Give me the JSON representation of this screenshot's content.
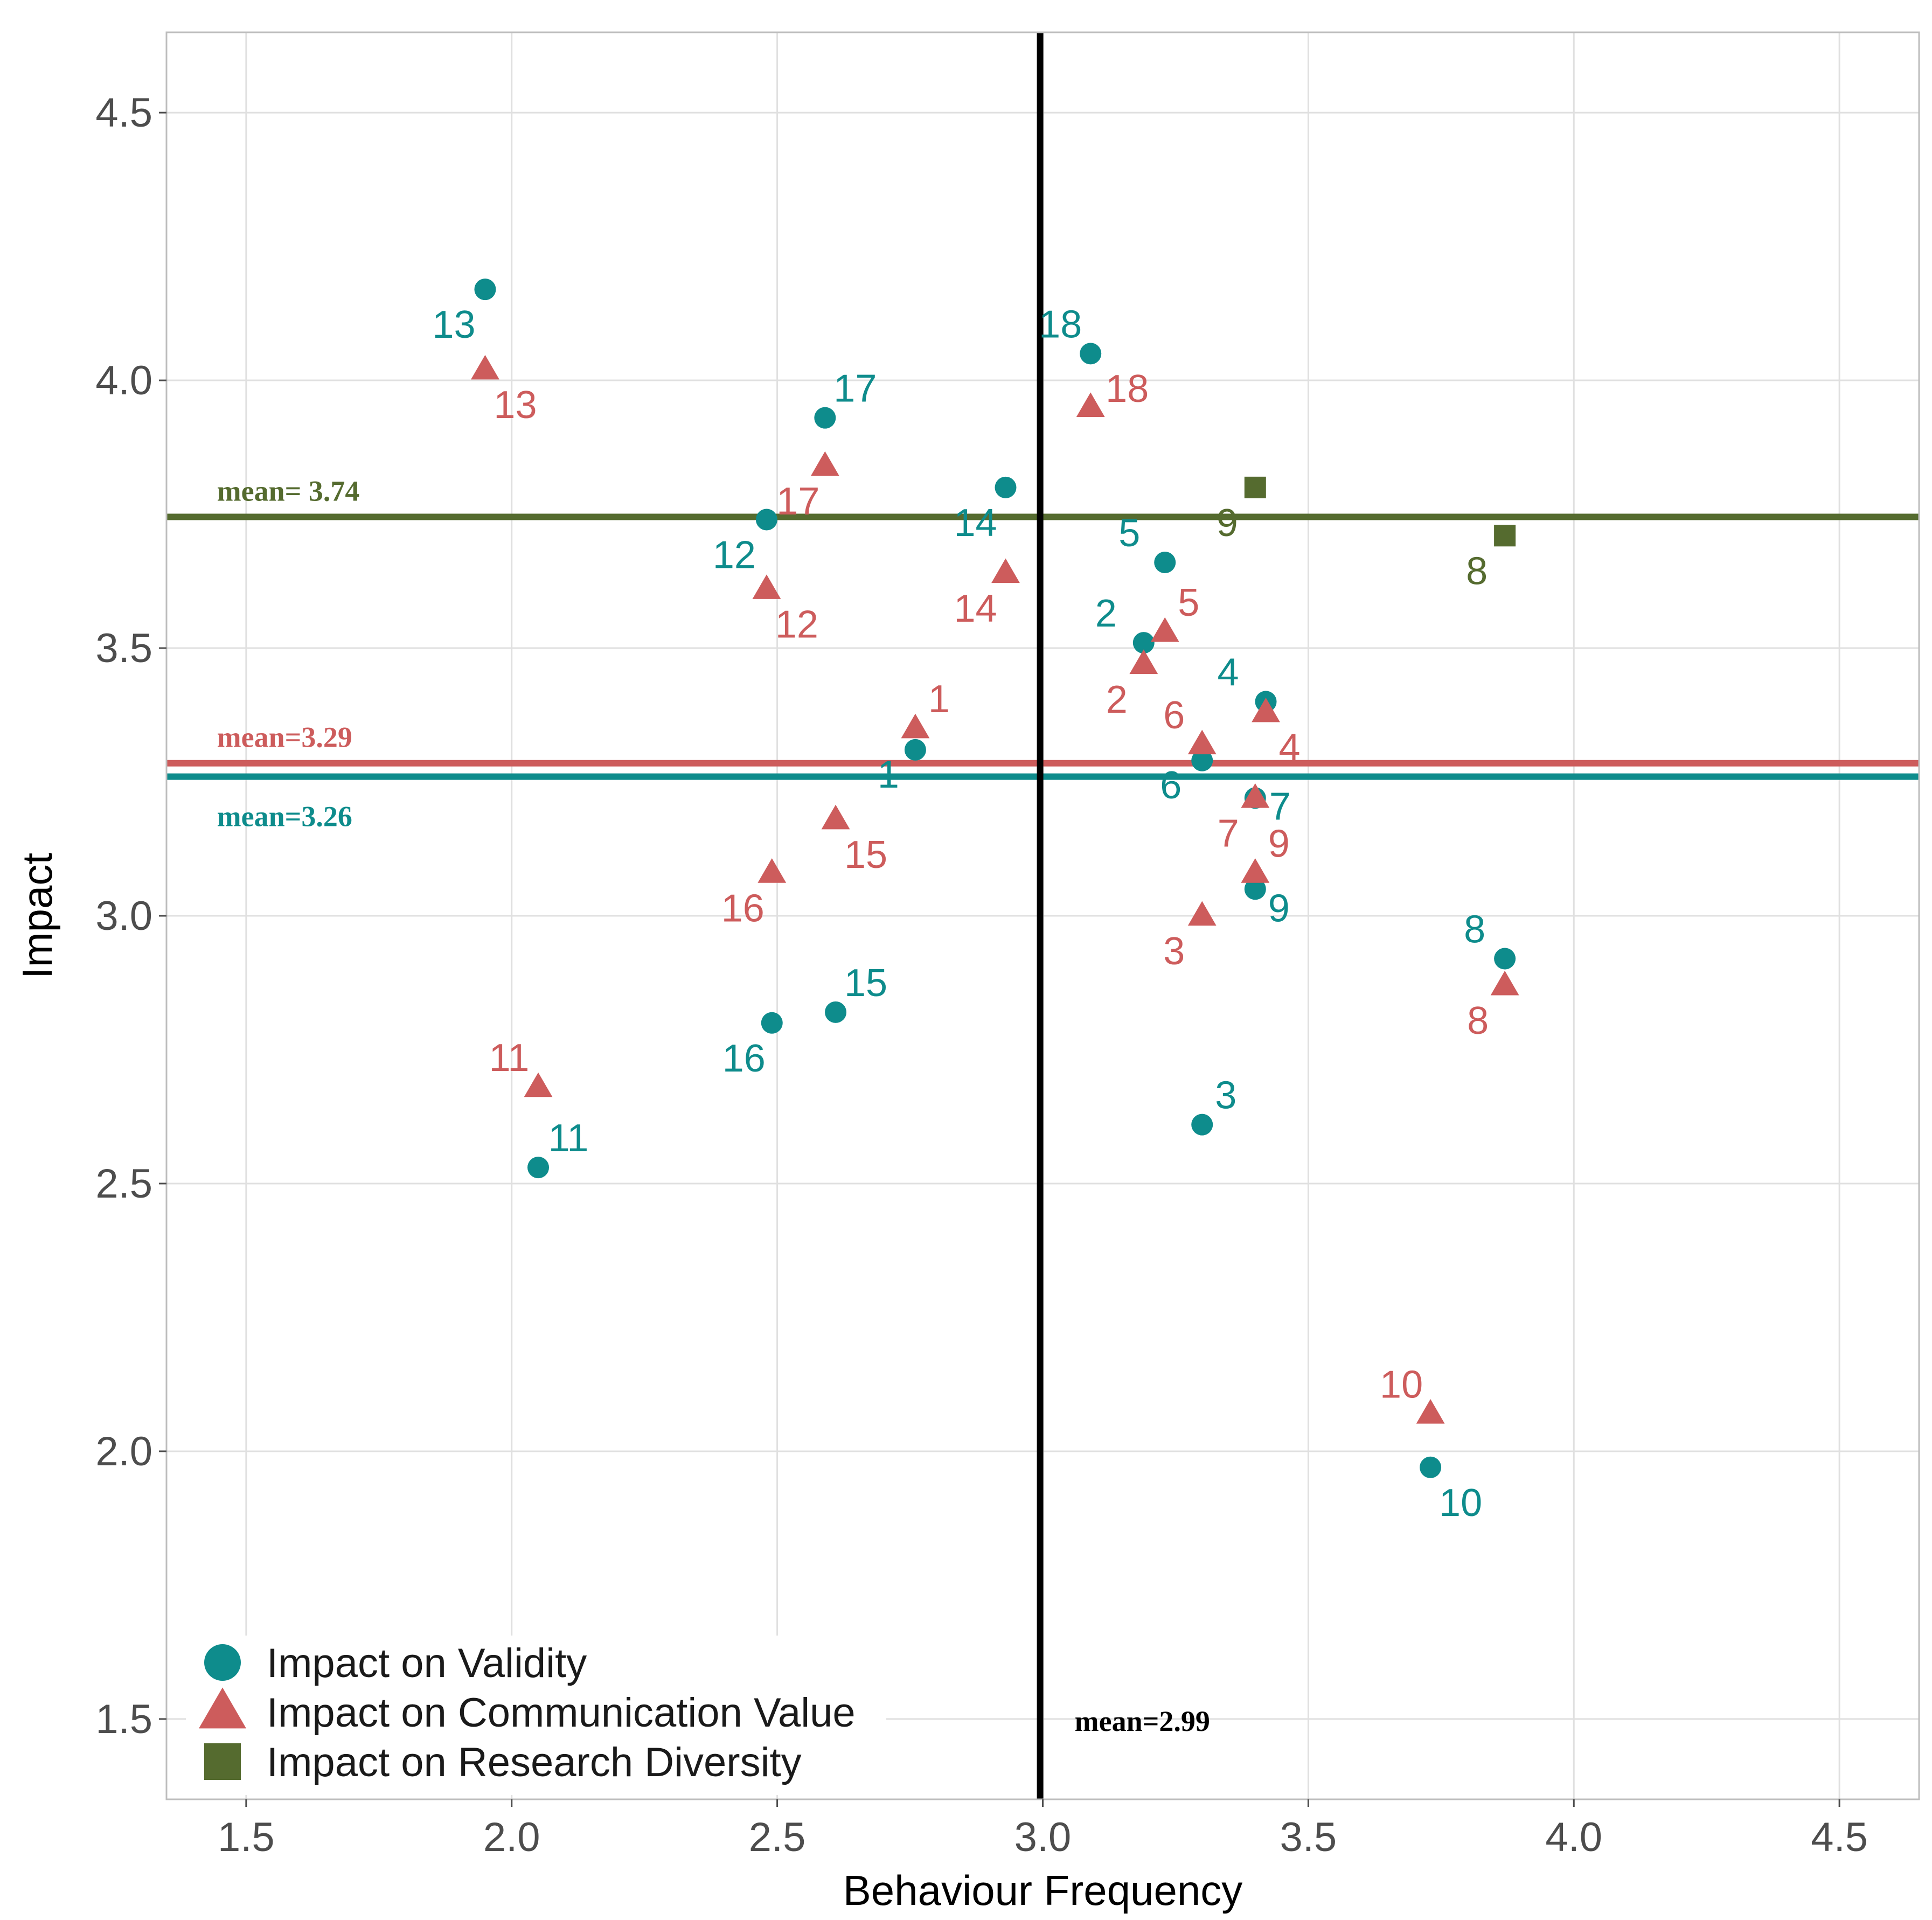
{
  "chart_data": {
    "type": "scatter",
    "xlabel": "Behaviour Frequency",
    "ylabel": "Impact",
    "xlim": [
      1.35,
      4.65
    ],
    "ylim": [
      1.35,
      4.65
    ],
    "xticks": [
      "1.5",
      "2.0",
      "2.5",
      "3.0",
      "3.5",
      "4.0",
      "4.5"
    ],
    "yticks": [
      "1.5",
      "2.0",
      "2.5",
      "3.0",
      "3.5",
      "4.0",
      "4.5"
    ],
    "grid": true,
    "legend_position": "bottom-left",
    "colors": {
      "validity": "#0E8C8C",
      "communication": "#CD5C5C",
      "diversity": "#556B2F",
      "vline": "#000000"
    },
    "series": [
      {
        "name": "Impact on Validity",
        "key": "validity",
        "marker": "circle",
        "points": [
          {
            "label": "1",
            "x": 2.76,
            "y": 3.31
          },
          {
            "label": "2",
            "x": 3.19,
            "y": 3.51
          },
          {
            "label": "3",
            "x": 3.3,
            "y": 2.61
          },
          {
            "label": "4",
            "x": 3.42,
            "y": 3.4
          },
          {
            "label": "5",
            "x": 3.23,
            "y": 3.66
          },
          {
            "label": "6",
            "x": 3.3,
            "y": 3.29
          },
          {
            "label": "7",
            "x": 3.4,
            "y": 3.22
          },
          {
            "label": "8",
            "x": 3.87,
            "y": 2.92
          },
          {
            "label": "9",
            "x": 3.4,
            "y": 3.05
          },
          {
            "label": "10",
            "x": 3.73,
            "y": 1.97
          },
          {
            "label": "11",
            "x": 2.05,
            "y": 2.53
          },
          {
            "label": "12",
            "x": 2.48,
            "y": 3.74
          },
          {
            "label": "13",
            "x": 1.95,
            "y": 4.17
          },
          {
            "label": "14",
            "x": 2.93,
            "y": 3.8
          },
          {
            "label": "15",
            "x": 2.61,
            "y": 2.82
          },
          {
            "label": "16",
            "x": 2.49,
            "y": 2.8
          },
          {
            "label": "17",
            "x": 2.59,
            "y": 3.93
          },
          {
            "label": "18",
            "x": 3.09,
            "y": 4.05
          }
        ]
      },
      {
        "name": "Impact on Communication Value",
        "key": "communication",
        "marker": "triangle",
        "points": [
          {
            "label": "1",
            "x": 2.76,
            "y": 3.35
          },
          {
            "label": "2",
            "x": 3.19,
            "y": 3.47
          },
          {
            "label": "3",
            "x": 3.3,
            "y": 3.0
          },
          {
            "label": "4",
            "x": 3.42,
            "y": 3.38
          },
          {
            "label": "5",
            "x": 3.23,
            "y": 3.53
          },
          {
            "label": "6",
            "x": 3.3,
            "y": 3.32
          },
          {
            "label": "7",
            "x": 3.4,
            "y": 3.22
          },
          {
            "label": "8",
            "x": 3.87,
            "y": 2.87
          },
          {
            "label": "9",
            "x": 3.4,
            "y": 3.08
          },
          {
            "label": "10",
            "x": 3.73,
            "y": 2.07
          },
          {
            "label": "11",
            "x": 2.05,
            "y": 2.68
          },
          {
            "label": "12",
            "x": 2.48,
            "y": 3.61
          },
          {
            "label": "13",
            "x": 1.95,
            "y": 4.02
          },
          {
            "label": "14",
            "x": 2.93,
            "y": 3.64
          },
          {
            "label": "15",
            "x": 2.61,
            "y": 3.18
          },
          {
            "label": "16",
            "x": 2.49,
            "y": 3.08
          },
          {
            "label": "17",
            "x": 2.59,
            "y": 3.84
          },
          {
            "label": "18",
            "x": 3.09,
            "y": 3.95
          }
        ]
      },
      {
        "name": "Impact on Research Diversity",
        "key": "diversity",
        "marker": "square",
        "points": [
          {
            "label": "9",
            "x": 3.4,
            "y": 3.8
          },
          {
            "label": "8",
            "x": 3.87,
            "y": 3.71
          }
        ]
      }
    ],
    "reference_lines": [
      {
        "orientation": "horizontal",
        "key": "diversity",
        "value": 3.745,
        "label": "mean= 3.74"
      },
      {
        "orientation": "horizontal",
        "key": "communication",
        "value": 3.285,
        "label": "mean=3.29"
      },
      {
        "orientation": "horizontal",
        "key": "validity",
        "value": 3.26,
        "label": "mean=3.26"
      },
      {
        "orientation": "vertical",
        "key": "vline",
        "value": 2.995,
        "label": "mean=2.99"
      }
    ]
  }
}
